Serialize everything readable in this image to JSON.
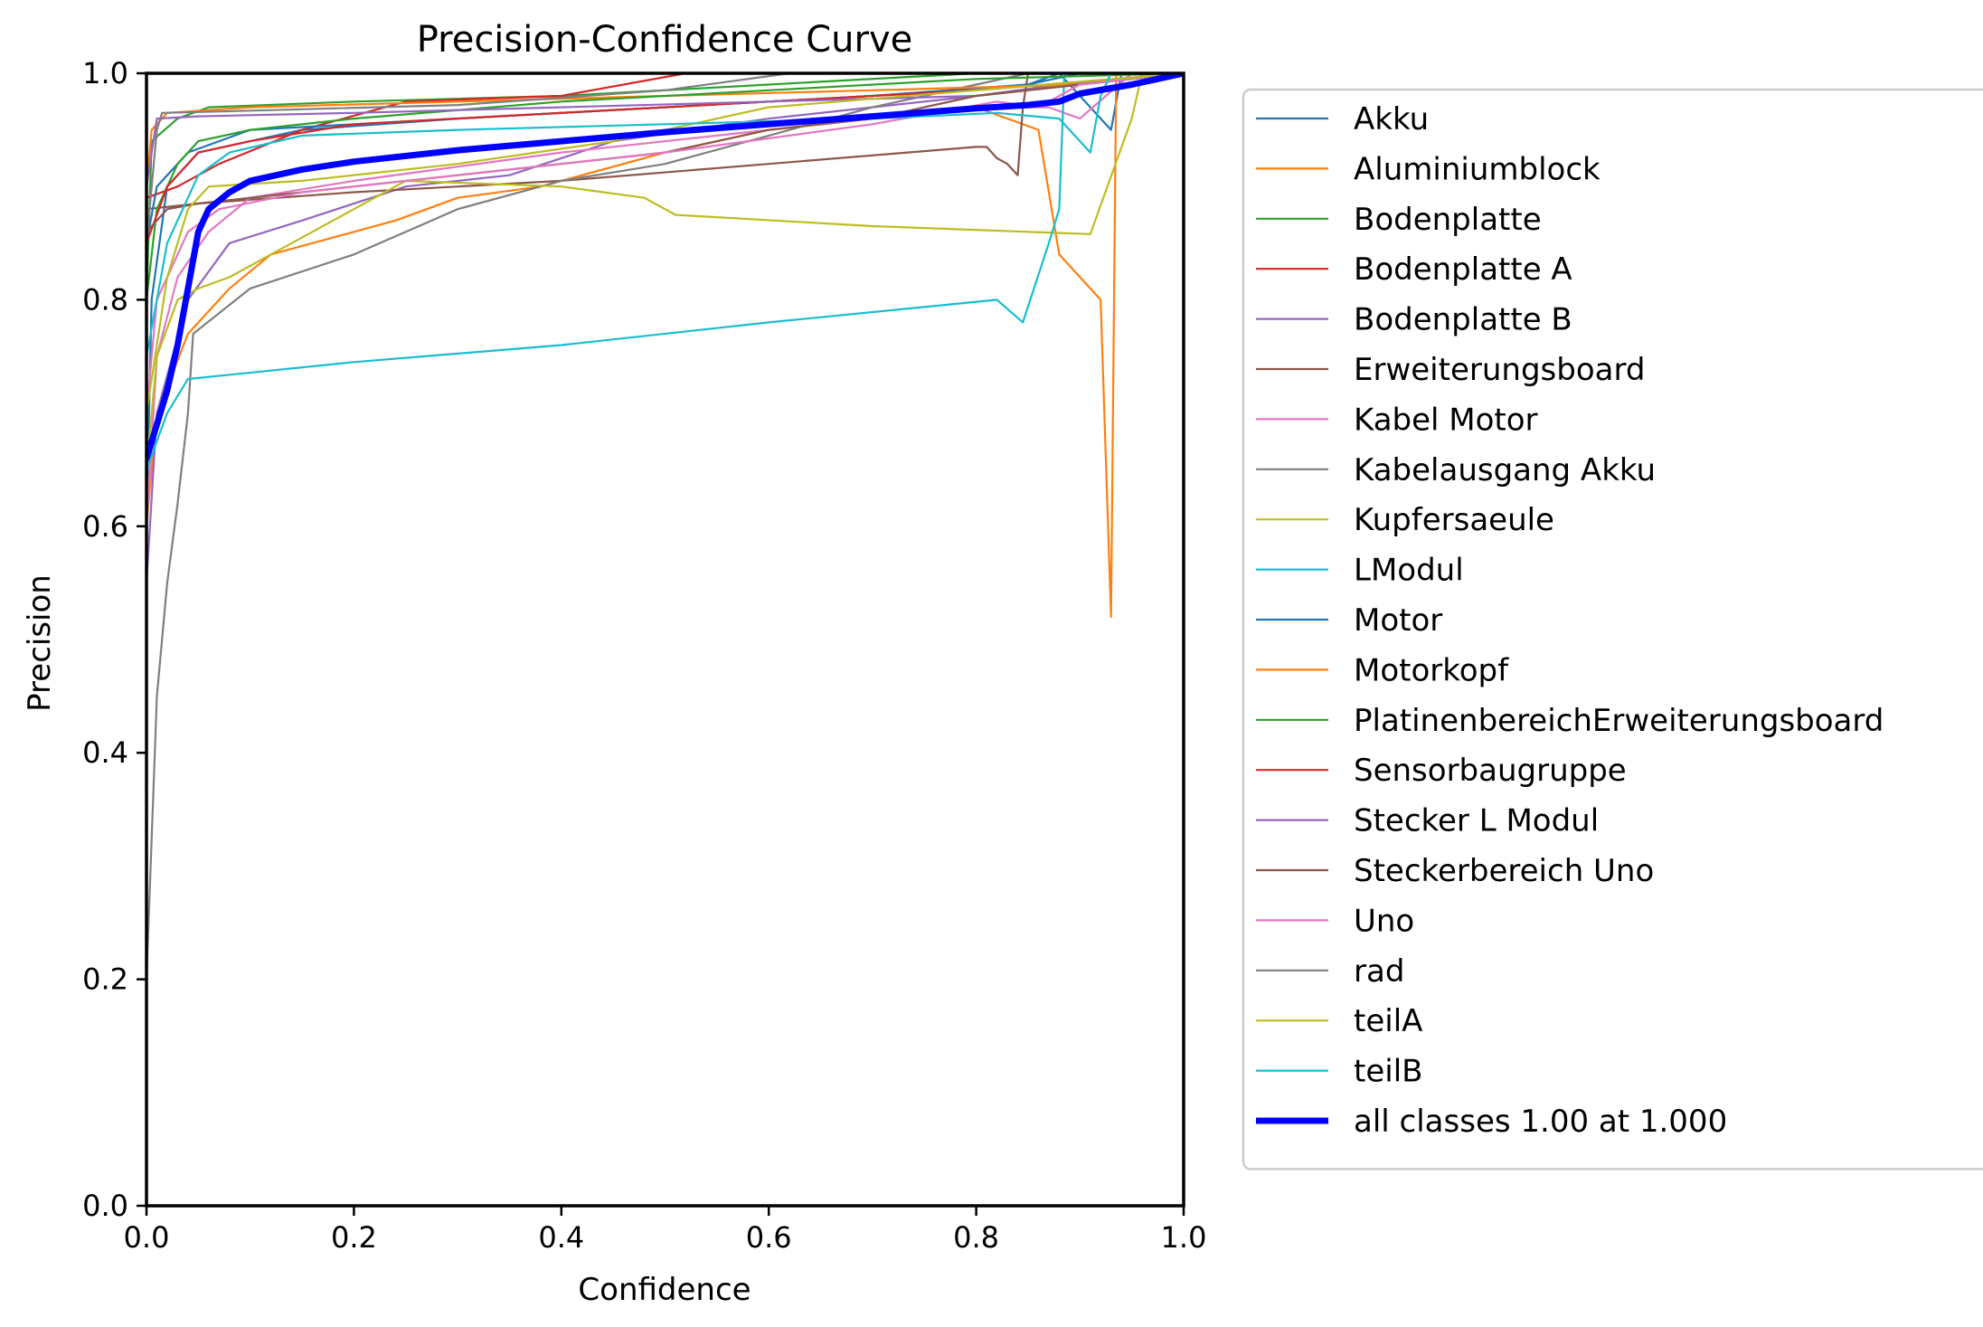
{
  "chart_data": {
    "type": "line",
    "title": "Precision-Confidence Curve",
    "xlabel": "Confidence",
    "ylabel": "Precision",
    "xlim": [
      0,
      1
    ],
    "ylim": [
      0,
      1
    ],
    "x_ticks": [
      "0.0",
      "0.2",
      "0.4",
      "0.6",
      "0.8",
      "1.0"
    ],
    "y_ticks": [
      "0.0",
      "0.2",
      "0.4",
      "0.6",
      "0.8",
      "1.0"
    ],
    "grid": false,
    "legend_position": "outside-right",
    "series": [
      {
        "name": "Akku",
        "color": "#1f77b4",
        "width": 2.2,
        "points": [
          [
            0,
            0.6
          ],
          [
            0.005,
            0.8
          ],
          [
            0.02,
            0.9
          ],
          [
            0.05,
            0.93
          ],
          [
            0.15,
            0.95
          ],
          [
            0.3,
            0.96
          ],
          [
            0.5,
            0.97
          ],
          [
            0.7,
            0.98
          ],
          [
            0.85,
            0.99
          ],
          [
            0.88,
            1.0
          ],
          [
            0.93,
            0.95
          ],
          [
            0.94,
            1.0
          ],
          [
            1.0,
            1.0
          ]
        ]
      },
      {
        "name": "Aluminiumblock",
        "color": "#ff7f0e",
        "width": 2.2,
        "points": [
          [
            0,
            0.6
          ],
          [
            0.01,
            0.7
          ],
          [
            0.04,
            0.77
          ],
          [
            0.08,
            0.81
          ],
          [
            0.12,
            0.84
          ],
          [
            0.2,
            0.86
          ],
          [
            0.24,
            0.87
          ],
          [
            0.3,
            0.89
          ],
          [
            0.38,
            0.9
          ],
          [
            0.5,
            0.93
          ],
          [
            0.6,
            0.95
          ],
          [
            0.7,
            0.96
          ],
          [
            0.8,
            0.97
          ],
          [
            0.86,
            0.95
          ],
          [
            0.88,
            0.84
          ],
          [
            0.91,
            0.81
          ],
          [
            0.92,
            0.8
          ],
          [
            0.93,
            0.52
          ],
          [
            0.935,
            1.0
          ],
          [
            1.0,
            1.0
          ]
        ]
      },
      {
        "name": "Bodenplatte",
        "color": "#2ca02c",
        "width": 2.2,
        "points": [
          [
            0,
            0.8
          ],
          [
            0.005,
            0.94
          ],
          [
            0.03,
            0.96
          ],
          [
            0.06,
            0.97
          ],
          [
            0.2,
            0.975
          ],
          [
            0.4,
            0.98
          ],
          [
            0.6,
            0.99
          ],
          [
            0.8,
            1.0
          ],
          [
            1.0,
            1.0
          ]
        ]
      },
      {
        "name": "Bodenplatte A",
        "color": "#d62728",
        "width": 2.2,
        "points": [
          [
            0,
            0.89
          ],
          [
            0.03,
            0.9
          ],
          [
            0.07,
            0.92
          ],
          [
            0.15,
            0.95
          ],
          [
            0.25,
            0.975
          ],
          [
            0.4,
            0.98
          ],
          [
            0.52,
            1.0
          ],
          [
            1.0,
            1.0
          ]
        ]
      },
      {
        "name": "Bodenplatte B",
        "color": "#9467bd",
        "width": 2.2,
        "points": [
          [
            0,
            0.55
          ],
          [
            0.01,
            0.7
          ],
          [
            0.04,
            0.8
          ],
          [
            0.08,
            0.85
          ],
          [
            0.15,
            0.87
          ],
          [
            0.25,
            0.9
          ],
          [
            0.35,
            0.91
          ],
          [
            0.45,
            0.94
          ],
          [
            0.6,
            0.96
          ],
          [
            0.8,
            0.98
          ],
          [
            0.88,
            0.99
          ],
          [
            1.0,
            1.0
          ]
        ]
      },
      {
        "name": "Erweiterungsboard",
        "color": "#8c564b",
        "width": 2.2,
        "points": [
          [
            0,
            0.88
          ],
          [
            0.05,
            0.885
          ],
          [
            0.2,
            0.895
          ],
          [
            0.4,
            0.905
          ],
          [
            0.6,
            0.92
          ],
          [
            0.8,
            0.935
          ],
          [
            0.81,
            0.935
          ],
          [
            0.82,
            0.925
          ],
          [
            0.83,
            0.92
          ],
          [
            0.84,
            0.91
          ],
          [
            0.845,
            0.97
          ],
          [
            0.85,
            1.0
          ],
          [
            1.0,
            1.0
          ]
        ]
      },
      {
        "name": "Kabel Motor",
        "color": "#e377c2",
        "width": 2.2,
        "points": [
          [
            0,
            0.6
          ],
          [
            0.01,
            0.75
          ],
          [
            0.03,
            0.82
          ],
          [
            0.06,
            0.86
          ],
          [
            0.1,
            0.89
          ],
          [
            0.2,
            0.905
          ],
          [
            0.4,
            0.93
          ],
          [
            0.6,
            0.95
          ],
          [
            0.8,
            0.97
          ],
          [
            0.87,
            0.97
          ],
          [
            0.9,
            0.96
          ],
          [
            0.95,
            1.0
          ],
          [
            1.0,
            1.0
          ]
        ]
      },
      {
        "name": "Kabelausgang Akku",
        "color": "#7f7f7f",
        "width": 2.2,
        "points": [
          [
            0,
            0.2
          ],
          [
            0.01,
            0.45
          ],
          [
            0.02,
            0.55
          ],
          [
            0.03,
            0.62
          ],
          [
            0.04,
            0.7
          ],
          [
            0.045,
            0.77
          ],
          [
            0.1,
            0.81
          ],
          [
            0.2,
            0.84
          ],
          [
            0.25,
            0.86
          ],
          [
            0.3,
            0.88
          ],
          [
            0.4,
            0.905
          ],
          [
            0.5,
            0.92
          ],
          [
            0.6,
            0.945
          ],
          [
            0.7,
            0.97
          ],
          [
            0.8,
            0.99
          ],
          [
            0.85,
            1.0
          ],
          [
            1.0,
            1.0
          ]
        ]
      },
      {
        "name": "Kupfersaeule",
        "color": "#bcbd22",
        "width": 2.2,
        "points": [
          [
            0,
            0.65
          ],
          [
            0.01,
            0.75
          ],
          [
            0.03,
            0.8
          ],
          [
            0.05,
            0.81
          ],
          [
            0.08,
            0.82
          ],
          [
            0.12,
            0.84
          ],
          [
            0.16,
            0.86
          ],
          [
            0.2,
            0.88
          ],
          [
            0.25,
            0.905
          ],
          [
            0.4,
            0.9
          ],
          [
            0.48,
            0.89
          ],
          [
            0.51,
            0.875
          ],
          [
            0.7,
            0.865
          ],
          [
            0.91,
            0.858
          ],
          [
            0.95,
            0.96
          ],
          [
            0.96,
            1.0
          ],
          [
            1.0,
            1.0
          ]
        ]
      },
      {
        "name": "LModul",
        "color": "#17becf",
        "width": 2.2,
        "points": [
          [
            0,
            0.65
          ],
          [
            0.02,
            0.7
          ],
          [
            0.04,
            0.73
          ],
          [
            0.2,
            0.745
          ],
          [
            0.4,
            0.76
          ],
          [
            0.6,
            0.78
          ],
          [
            0.82,
            0.8
          ],
          [
            0.845,
            0.78
          ],
          [
            0.87,
            0.85
          ],
          [
            0.88,
            0.88
          ],
          [
            0.885,
            1.0
          ],
          [
            1.0,
            1.0
          ]
        ]
      },
      {
        "name": "Motor",
        "color": "#1f77b4",
        "width": 2.2,
        "points": [
          [
            0,
            0.85
          ],
          [
            0.01,
            0.9
          ],
          [
            0.04,
            0.93
          ],
          [
            0.1,
            0.95
          ],
          [
            0.3,
            0.96
          ],
          [
            0.5,
            0.97
          ],
          [
            0.7,
            0.98
          ],
          [
            0.85,
            0.99
          ],
          [
            0.9,
            1.0
          ],
          [
            1.0,
            1.0
          ]
        ]
      },
      {
        "name": "Motorkopf",
        "color": "#ff7f0e",
        "width": 2.2,
        "points": [
          [
            0,
            0.9
          ],
          [
            0.005,
            0.95
          ],
          [
            0.02,
            0.965
          ],
          [
            0.1,
            0.97
          ],
          [
            0.3,
            0.975
          ],
          [
            0.5,
            0.98
          ],
          [
            0.7,
            0.985
          ],
          [
            0.9,
            0.99
          ],
          [
            1.0,
            1.0
          ]
        ]
      },
      {
        "name": "PlatinenbereichErweiterungsboard",
        "color": "#2ca02c",
        "width": 2.2,
        "points": [
          [
            0,
            0.8
          ],
          [
            0.01,
            0.88
          ],
          [
            0.03,
            0.92
          ],
          [
            0.05,
            0.94
          ],
          [
            0.1,
            0.95
          ],
          [
            0.2,
            0.96
          ],
          [
            0.4,
            0.975
          ],
          [
            0.6,
            0.985
          ],
          [
            0.8,
            0.995
          ],
          [
            1.0,
            1.0
          ]
        ]
      },
      {
        "name": "Sensorbaugruppe",
        "color": "#d62728",
        "width": 2.2,
        "points": [
          [
            0,
            0.85
          ],
          [
            0.02,
            0.9
          ],
          [
            0.05,
            0.93
          ],
          [
            0.1,
            0.94
          ],
          [
            0.2,
            0.955
          ],
          [
            0.4,
            0.965
          ],
          [
            0.6,
            0.975
          ],
          [
            0.8,
            0.985
          ],
          [
            1.0,
            1.0
          ]
        ]
      },
      {
        "name": "Stecker L Modul",
        "color": "#9467bd",
        "width": 2.2,
        "points": [
          [
            0,
            0.9
          ],
          [
            0.01,
            0.96
          ],
          [
            0.05,
            0.962
          ],
          [
            0.2,
            0.965
          ],
          [
            0.4,
            0.97
          ],
          [
            0.6,
            0.975
          ],
          [
            0.8,
            0.98
          ],
          [
            0.9,
            0.99
          ],
          [
            1.0,
            1.0
          ]
        ]
      },
      {
        "name": "Steckerbereich Uno",
        "color": "#8c564b",
        "width": 2.2,
        "points": [
          [
            0,
            0.86
          ],
          [
            0.02,
            0.88
          ],
          [
            0.05,
            0.885
          ],
          [
            0.2,
            0.9
          ],
          [
            0.3,
            0.91
          ],
          [
            0.5,
            0.93
          ],
          [
            0.6,
            0.95
          ],
          [
            0.7,
            0.96
          ],
          [
            0.8,
            0.98
          ],
          [
            0.9,
            0.99
          ],
          [
            1.0,
            1.0
          ]
        ]
      },
      {
        "name": "Uno",
        "color": "#e377c2",
        "width": 2.2,
        "points": [
          [
            0,
            0.7
          ],
          [
            0.01,
            0.8
          ],
          [
            0.04,
            0.86
          ],
          [
            0.07,
            0.88
          ],
          [
            0.15,
            0.895
          ],
          [
            0.3,
            0.91
          ],
          [
            0.5,
            0.93
          ],
          [
            0.7,
            0.955
          ],
          [
            0.82,
            0.975
          ],
          [
            0.86,
            0.97
          ],
          [
            0.9,
            0.99
          ],
          [
            1.0,
            1.0
          ]
        ]
      },
      {
        "name": "rad",
        "color": "#7f7f7f",
        "width": 2.2,
        "points": [
          [
            0,
            0.85
          ],
          [
            0.01,
            0.95
          ],
          [
            0.015,
            0.965
          ],
          [
            0.1,
            0.967
          ],
          [
            0.3,
            0.972
          ],
          [
            0.5,
            0.985
          ],
          [
            0.62,
            1.0
          ],
          [
            1.0,
            1.0
          ]
        ]
      },
      {
        "name": "teilA",
        "color": "#bcbd22",
        "width": 2.2,
        "points": [
          [
            0,
            0.7
          ],
          [
            0.02,
            0.82
          ],
          [
            0.04,
            0.88
          ],
          [
            0.06,
            0.9
          ],
          [
            0.15,
            0.905
          ],
          [
            0.3,
            0.92
          ],
          [
            0.45,
            0.94
          ],
          [
            0.6,
            0.97
          ],
          [
            0.8,
            0.985
          ],
          [
            1.0,
            1.0
          ]
        ]
      },
      {
        "name": "teilB",
        "color": "#17becf",
        "width": 2.2,
        "points": [
          [
            0,
            0.75
          ],
          [
            0.02,
            0.85
          ],
          [
            0.05,
            0.91
          ],
          [
            0.08,
            0.93
          ],
          [
            0.15,
            0.945
          ],
          [
            0.3,
            0.95
          ],
          [
            0.5,
            0.955
          ],
          [
            0.7,
            0.96
          ],
          [
            0.82,
            0.965
          ],
          [
            0.88,
            0.96
          ],
          [
            0.9,
            0.94
          ],
          [
            0.91,
            0.93
          ],
          [
            0.92,
            0.98
          ],
          [
            0.93,
            1.0
          ],
          [
            1.0,
            1.0
          ]
        ]
      },
      {
        "name": "all classes 1.00 at 1.000",
        "color": "#0000ff",
        "width": 7,
        "points": [
          [
            0,
            0.66
          ],
          [
            0.01,
            0.69
          ],
          [
            0.02,
            0.72
          ],
          [
            0.03,
            0.76
          ],
          [
            0.04,
            0.81
          ],
          [
            0.05,
            0.86
          ],
          [
            0.06,
            0.88
          ],
          [
            0.08,
            0.895
          ],
          [
            0.1,
            0.905
          ],
          [
            0.15,
            0.915
          ],
          [
            0.2,
            0.922
          ],
          [
            0.3,
            0.932
          ],
          [
            0.4,
            0.94
          ],
          [
            0.5,
            0.948
          ],
          [
            0.6,
            0.955
          ],
          [
            0.7,
            0.962
          ],
          [
            0.8,
            0.969
          ],
          [
            0.85,
            0.972
          ],
          [
            0.88,
            0.975
          ],
          [
            0.9,
            0.982
          ],
          [
            0.95,
            0.99
          ],
          [
            1.0,
            1.0
          ]
        ]
      }
    ]
  }
}
